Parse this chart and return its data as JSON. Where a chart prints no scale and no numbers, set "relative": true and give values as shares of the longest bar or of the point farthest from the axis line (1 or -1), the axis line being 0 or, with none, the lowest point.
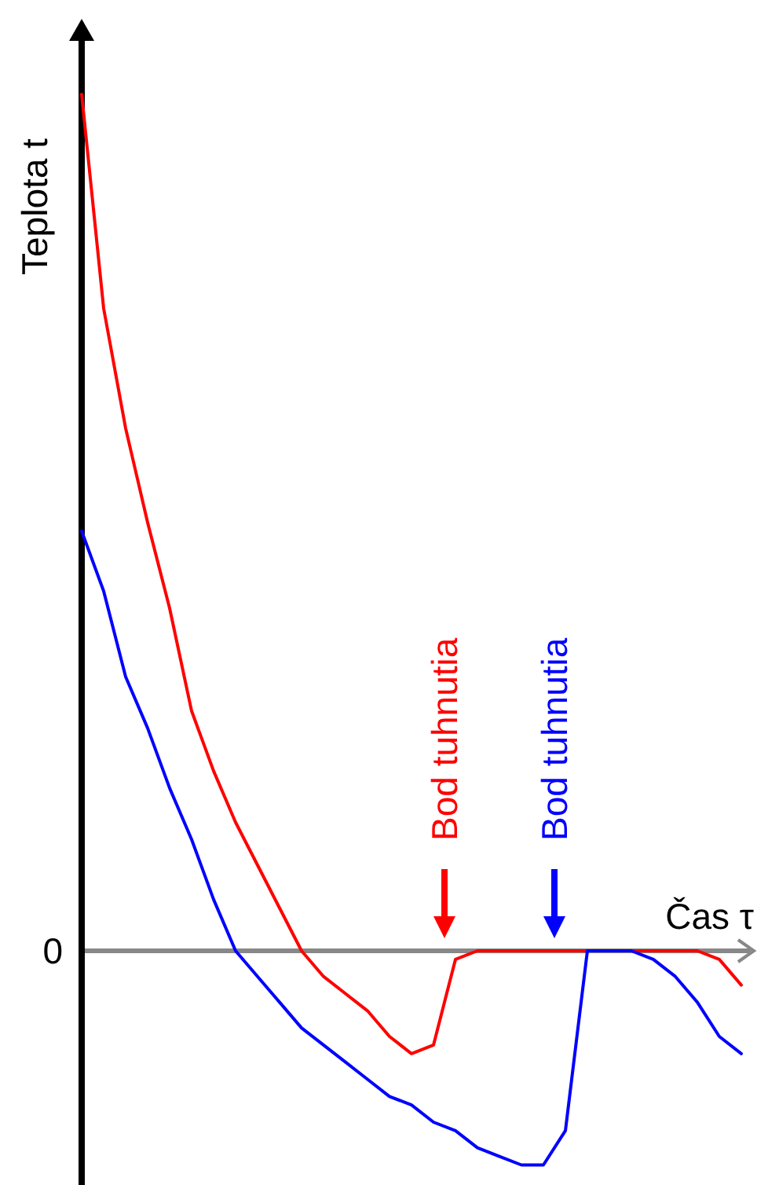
{
  "chart_data": {
    "type": "line",
    "relative": true,
    "xlabel": "Čas τ",
    "ylabel": "Teplota t",
    "categories": [
      null,
      null,
      null,
      null,
      null,
      null,
      null,
      null,
      null,
      null,
      null,
      null,
      null,
      null,
      null,
      null,
      null,
      null,
      null,
      null,
      null,
      null,
      null,
      null,
      null,
      null,
      null,
      null,
      null,
      null,
      null
    ],
    "series": [
      {
        "color": "#ff0000",
        "values": [
          1.0,
          0.75,
          0.61,
          0.5,
          0.4,
          0.28,
          0.21,
          0.15,
          0.1,
          0.05,
          0.0,
          -0.03,
          -0.05,
          -0.07,
          -0.1,
          -0.12,
          -0.11,
          -0.01,
          0,
          0,
          0,
          0,
          0,
          0,
          0,
          0,
          0,
          0,
          0,
          -0.01,
          -0.04
        ]
      },
      {
        "color": "#0000ff",
        "values": [
          0.49,
          0.42,
          0.32,
          0.26,
          0.19,
          0.13,
          0.06,
          0,
          -0.03,
          -0.06,
          -0.09,
          -0.11,
          -0.13,
          -0.15,
          -0.17,
          -0.18,
          -0.2,
          -0.21,
          -0.23,
          -0.24,
          -0.25,
          -0.25,
          -0.21,
          0.0,
          0,
          0,
          -0.01,
          -0.03,
          -0.06,
          -0.1,
          -0.12
        ]
      }
    ],
    "annotations": [
      "0",
      "Bod tuhnutia",
      "Bod tuhnutia"
    ],
    "marker": "none",
    "line_style": "solid"
  }
}
